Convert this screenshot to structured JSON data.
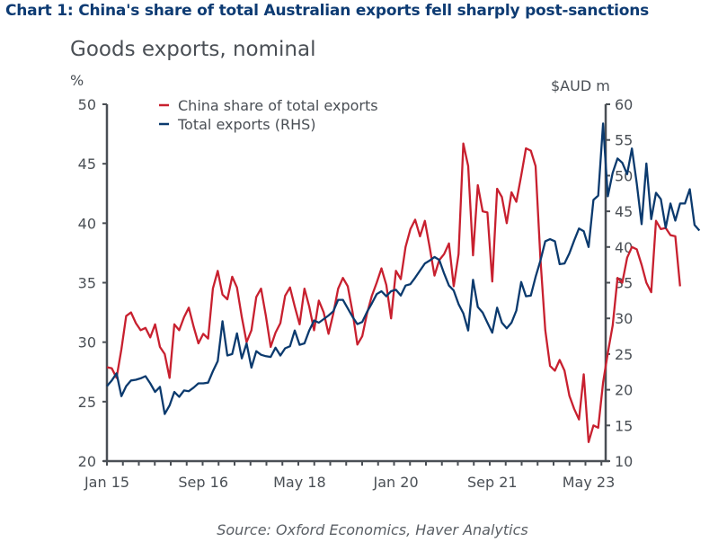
{
  "title": "Chart 1: China's share of total Australian exports fell sharply post-sanctions",
  "subtitle": "Goods exports, nominal",
  "source": "Source: Oxford Economics, Haver Analytics",
  "colors": {
    "china": "#c8202f",
    "total": "#0b3a6e",
    "axis": "#4a4f55"
  },
  "chart_data": {
    "type": "line",
    "title": "Goods exports, nominal",
    "ylabel_left": "%",
    "ylabel_right": "$AUD m",
    "xlabel": "",
    "ylim_left": [
      20,
      50
    ],
    "ylim_right": [
      10,
      60
    ],
    "yticks_left": [
      "20",
      "25",
      "30",
      "35",
      "40",
      "45",
      "50"
    ],
    "yticks_right": [
      "10",
      "15",
      "20",
      "25",
      "30",
      "35",
      "40",
      "45",
      "50",
      "55",
      "60"
    ],
    "xtick_labels": [
      "Jan 15",
      "Sep 16",
      "May 18",
      "Jan 20",
      "Sep 21",
      "May 23"
    ],
    "x_start": "Jan 2015",
    "x_frequency": "monthly",
    "legend": [
      "China share of total exports",
      "Total exports (RHS)"
    ],
    "legend_position": "top-left",
    "grid": false,
    "series": [
      {
        "name": "China share of total exports",
        "axis": "left",
        "values": [
          27.9,
          27.8,
          27.0,
          29.4,
          32.2,
          32.5,
          31.6,
          31.0,
          31.2,
          30.4,
          31.5,
          29.6,
          29.0,
          27.0,
          31.5,
          31.0,
          32.1,
          32.9,
          31.3,
          29.9,
          30.7,
          30.3,
          34.5,
          36.0,
          34.0,
          33.6,
          35.5,
          34.6,
          32.1,
          30.0,
          31.0,
          33.8,
          34.5,
          32.2,
          29.6,
          30.8,
          31.6,
          33.9,
          34.6,
          33.0,
          31.5,
          34.5,
          33.0,
          31.0,
          33.5,
          32.5,
          30.7,
          32.4,
          34.5,
          35.4,
          34.7,
          32.5,
          29.8,
          30.5,
          32.4,
          33.9,
          35.0,
          36.2,
          34.8,
          32.0,
          36.0,
          35.3,
          38.0,
          39.5,
          40.3,
          38.9,
          40.2,
          38.0,
          35.6,
          36.9,
          37.4,
          38.3,
          34.7,
          37.4,
          46.7,
          44.8,
          37.3,
          43.2,
          41.0,
          40.9,
          35.1,
          42.9,
          42.2,
          40.0,
          42.6,
          41.8,
          44.0,
          46.3,
          46.1,
          44.8,
          37.0,
          31.0,
          28.0,
          27.6,
          28.5,
          27.6,
          25.5,
          24.4,
          23.5,
          27.3,
          21.6,
          23.0,
          22.8,
          26.6,
          29.1,
          31.4,
          35.4,
          35.0,
          37.1,
          38.0,
          37.8,
          36.5,
          35.0,
          34.2,
          40.2,
          39.5,
          39.6,
          39.0,
          38.9,
          34.7
        ]
      },
      {
        "name": "Total exports (RHS)",
        "axis": "right",
        "values": [
          20.5,
          21.3,
          22.3,
          19.1,
          20.5,
          21.3,
          21.4,
          21.6,
          21.9,
          20.9,
          19.7,
          20.4,
          16.6,
          17.8,
          19.7,
          19.0,
          19.9,
          19.8,
          20.3,
          20.9,
          20.9,
          21.0,
          22.6,
          24.0,
          29.6,
          24.8,
          25.0,
          27.9,
          24.4,
          26.5,
          23.1,
          25.4,
          24.9,
          24.7,
          24.6,
          25.9,
          24.8,
          25.8,
          26.1,
          28.3,
          26.3,
          26.5,
          28.3,
          29.7,
          29.4,
          29.9,
          30.4,
          31.0,
          32.6,
          32.6,
          31.4,
          30.2,
          29.2,
          29.5,
          30.9,
          32.1,
          33.4,
          33.8,
          33.1,
          33.8,
          34.0,
          33.2,
          34.6,
          34.8,
          35.7,
          36.7,
          37.7,
          38.1,
          38.6,
          38.2,
          36.3,
          34.6,
          33.9,
          32.0,
          30.7,
          28.3,
          35.4,
          31.6,
          30.8,
          29.4,
          28.0,
          31.5,
          29.4,
          28.6,
          29.4,
          31.1,
          35.1,
          33.1,
          33.2,
          35.8,
          38.1,
          40.8,
          41.1,
          40.8,
          37.6,
          37.7,
          39.1,
          40.9,
          42.6,
          42.2,
          40.0,
          46.6,
          47.2,
          57.3,
          47.1,
          50.4,
          52.4,
          51.8,
          50.2,
          53.8,
          48.9,
          43.2,
          51.7,
          43.9,
          47.6,
          46.7,
          42.7,
          46.1,
          43.7,
          46.1,
          46.1,
          48.1,
          43.1,
          42.3
        ]
      }
    ]
  }
}
